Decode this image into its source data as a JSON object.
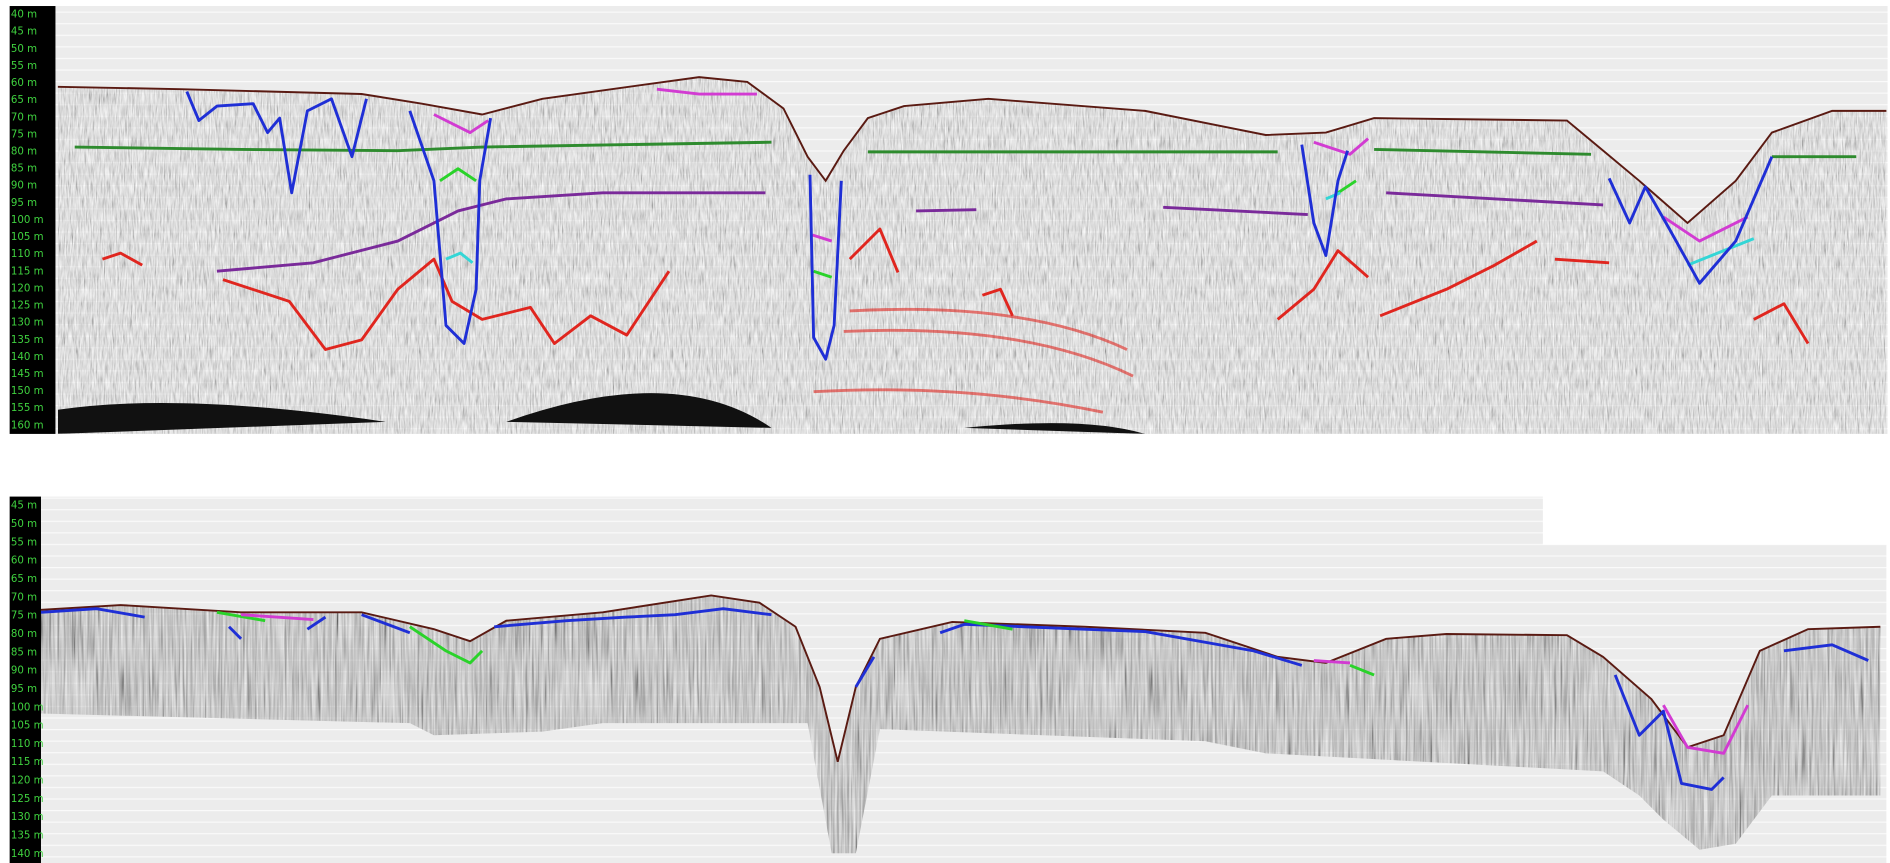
{
  "panels": [
    {
      "depth_labels": [
        "40 m",
        "45 m",
        "50 m",
        "55 m",
        "60 m",
        "65 m",
        "70 m",
        "75 m",
        "80 m",
        "85 m",
        "90 m",
        "95 m",
        "100 m",
        "105 m",
        "110 m",
        "115 m",
        "120 m",
        "125 m",
        "130 m",
        "135 m",
        "140 m",
        "145 m",
        "150 m",
        "155 m",
        "160 m"
      ]
    },
    {
      "depth_labels": [
        "45 m",
        "50 m",
        "55 m",
        "60 m",
        "65 m",
        "70 m",
        "75 m",
        "80 m",
        "85 m",
        "90 m",
        "95 m",
        "100 m",
        "105 m",
        "110 m",
        "115 m",
        "120 m",
        "125 m",
        "130 m",
        "135 m",
        "140 m"
      ]
    }
  ]
}
